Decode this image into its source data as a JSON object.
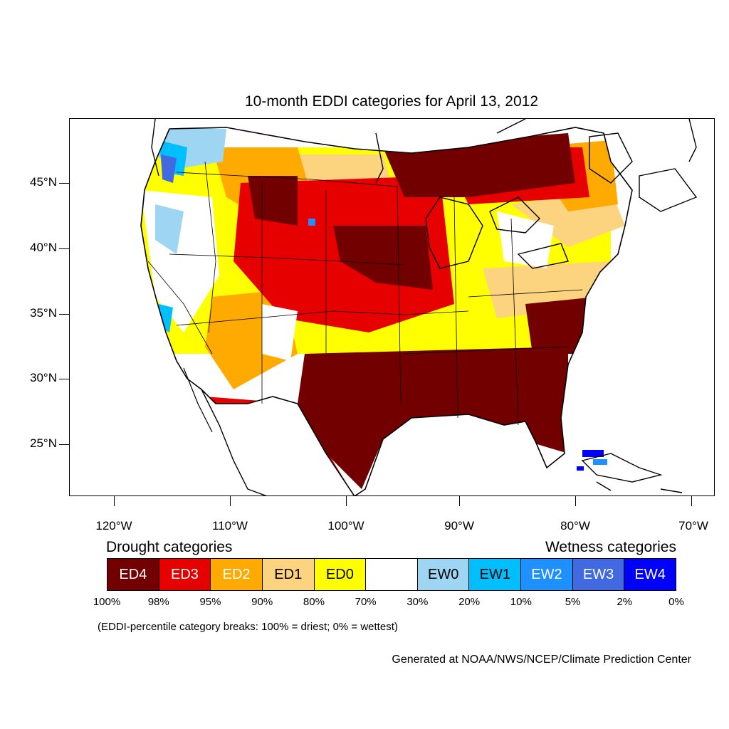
{
  "title": "10-month EDDI categories for April 13, 2012",
  "map": {
    "lat_labels": [
      "45°N",
      "40°N",
      "35°N",
      "30°N",
      "25°N"
    ],
    "lon_labels": [
      "120°W",
      "110°W",
      "100°W",
      "90°W",
      "80°W",
      "70°W"
    ]
  },
  "legend": {
    "drought_heading": "Drought categories",
    "wetness_heading": "Wetness categories",
    "categories": [
      {
        "label": "ED4",
        "color": "#730000",
        "text_color": "#ffffff"
      },
      {
        "label": "ED3",
        "color": "#e60000",
        "text_color": "#ffffff"
      },
      {
        "label": "ED2",
        "color": "#ffaa00",
        "text_color": "#ffffff"
      },
      {
        "label": "ED1",
        "color": "#fcd37f",
        "text_color": "#000000"
      },
      {
        "label": "ED0",
        "color": "#ffff00",
        "text_color": "#000000"
      },
      {
        "label": "",
        "color": "#ffffff",
        "text_color": "#000000"
      },
      {
        "label": "EW0",
        "color": "#9dd5f2",
        "text_color": "#000000"
      },
      {
        "label": "EW1",
        "color": "#00bfff",
        "text_color": "#000000"
      },
      {
        "label": "EW2",
        "color": "#1e90ff",
        "text_color": "#ffffff"
      },
      {
        "label": "EW3",
        "color": "#4169e1",
        "text_color": "#ffffff"
      },
      {
        "label": "EW4",
        "color": "#0000ff",
        "text_color": "#ffffff"
      }
    ],
    "breaks": [
      "100%",
      "98%",
      "95%",
      "90%",
      "80%",
      "70%",
      "30%",
      "20%",
      "10%",
      "5%",
      "2%",
      "0%"
    ]
  },
  "note": "(EDDI-percentile category breaks: 100% = driest; 0% = wettest)",
  "credit": "Generated at NOAA/NWS/NCEP/Climate Prediction Center"
}
